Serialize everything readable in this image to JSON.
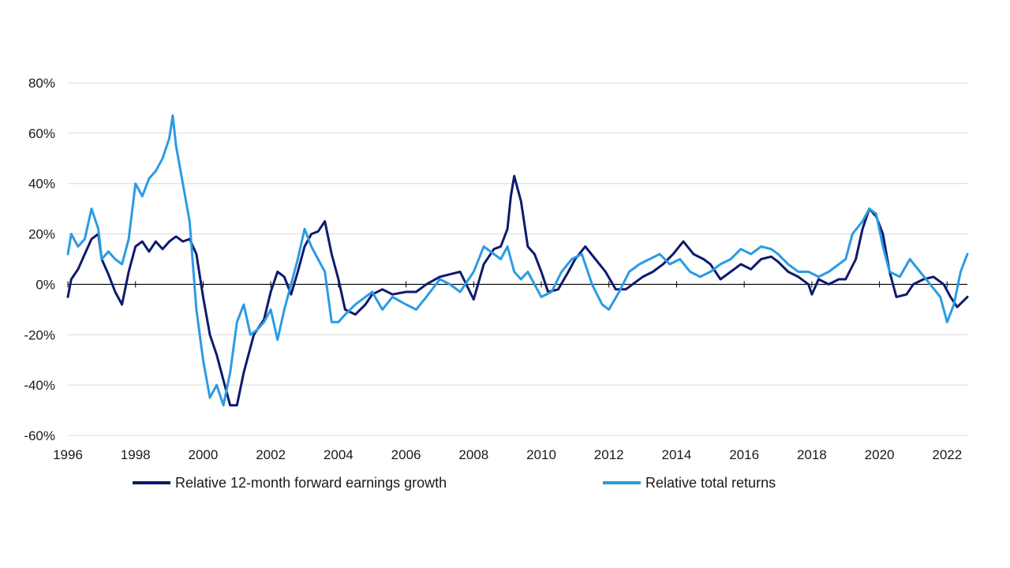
{
  "chart_data": {
    "type": "line",
    "title": "",
    "xlabel": "",
    "ylabel": "",
    "xlim": [
      1996.0,
      2022.6
    ],
    "ylim": [
      -60,
      80
    ],
    "grid": "horizontal",
    "legend_position": "bottom",
    "y_ticks": [
      80,
      60,
      40,
      20,
      0,
      -20,
      -40,
      -60
    ],
    "y_tick_labels": [
      "80%",
      "60%",
      "40%",
      "20%",
      "0%",
      "-20%",
      "-40%",
      "-60%"
    ],
    "x_ticks": [
      1996,
      1998,
      2000,
      2002,
      2004,
      2006,
      2008,
      2010,
      2012,
      2014,
      2016,
      2018,
      2020,
      2022
    ],
    "x_tick_labels": [
      "1996",
      "1998",
      "2000",
      "2002",
      "2004",
      "2006",
      "2008",
      "2010",
      "2012",
      "2014",
      "2016",
      "2018",
      "2020",
      "2022"
    ],
    "series": [
      {
        "name": "Relative 12-month forward earnings growth",
        "color": "#0d1a6e",
        "x": [
          1996.0,
          1996.1,
          1996.3,
          1996.5,
          1996.7,
          1996.9,
          1997.0,
          1997.2,
          1997.4,
          1997.6,
          1997.8,
          1998.0,
          1998.2,
          1998.4,
          1998.6,
          1998.8,
          1999.0,
          1999.2,
          1999.4,
          1999.6,
          1999.8,
          2000.0,
          2000.2,
          2000.4,
          2000.6,
          2000.8,
          2001.0,
          2001.2,
          2001.5,
          2001.8,
          2002.0,
          2002.2,
          2002.4,
          2002.6,
          2002.8,
          2003.0,
          2003.2,
          2003.4,
          2003.6,
          2003.8,
          2004.0,
          2004.2,
          2004.5,
          2004.8,
          2005.0,
          2005.3,
          2005.6,
          2006.0,
          2006.3,
          2006.6,
          2007.0,
          2007.3,
          2007.6,
          2008.0,
          2008.3,
          2008.6,
          2008.8,
          2009.0,
          2009.1,
          2009.2,
          2009.4,
          2009.6,
          2009.8,
          2010.0,
          2010.2,
          2010.5,
          2010.8,
          2011.0,
          2011.3,
          2011.6,
          2011.9,
          2012.2,
          2012.5,
          2012.8,
          2013.0,
          2013.3,
          2013.6,
          2013.9,
          2014.2,
          2014.5,
          2014.8,
          2015.0,
          2015.3,
          2015.6,
          2015.9,
          2016.2,
          2016.5,
          2016.8,
          2017.0,
          2017.3,
          2017.6,
          2017.9,
          2018.0,
          2018.2,
          2018.5,
          2018.8,
          2019.0,
          2019.3,
          2019.5,
          2019.7,
          2019.9,
          2020.1,
          2020.3,
          2020.5,
          2020.8,
          2021.0,
          2021.3,
          2021.6,
          2021.9,
          2022.1,
          2022.3,
          2022.6
        ],
        "values": [
          -5,
          2,
          6,
          12,
          18,
          20,
          10,
          4,
          -3,
          -8,
          5,
          15,
          17,
          13,
          17,
          14,
          17,
          19,
          17,
          18,
          12,
          -5,
          -20,
          -28,
          -38,
          -48,
          -48,
          -35,
          -20,
          -14,
          -3,
          5,
          3,
          -4,
          5,
          15,
          20,
          21,
          25,
          12,
          2,
          -10,
          -12,
          -8,
          -4,
          -2,
          -4,
          -3,
          -3,
          0,
          3,
          4,
          5,
          -6,
          8,
          14,
          15,
          22,
          35,
          43,
          33,
          15,
          12,
          5,
          -3,
          -2,
          5,
          10,
          15,
          10,
          5,
          -2,
          -2,
          1,
          3,
          5,
          8,
          12,
          17,
          12,
          10,
          8,
          2,
          5,
          8,
          6,
          10,
          11,
          9,
          5,
          3,
          0,
          -4,
          2,
          0,
          2,
          2,
          10,
          22,
          30,
          27,
          20,
          5,
          -5,
          -4,
          0,
          2,
          3,
          0,
          -5,
          -9,
          -5
        ]
      },
      {
        "name": "Relative total returns",
        "color": "#2b9be3",
        "x": [
          1996.0,
          1996.1,
          1996.3,
          1996.5,
          1996.7,
          1996.9,
          1997.0,
          1997.2,
          1997.4,
          1997.6,
          1997.8,
          1998.0,
          1998.2,
          1998.4,
          1998.6,
          1998.8,
          1999.0,
          1999.1,
          1999.2,
          1999.4,
          1999.6,
          1999.8,
          2000.0,
          2000.2,
          2000.4,
          2000.6,
          2000.8,
          2001.0,
          2001.2,
          2001.4,
          2001.6,
          2001.8,
          2002.0,
          2002.2,
          2002.4,
          2002.6,
          2002.8,
          2003.0,
          2003.2,
          2003.4,
          2003.6,
          2003.8,
          2004.0,
          2004.2,
          2004.5,
          2004.8,
          2005.0,
          2005.3,
          2005.6,
          2006.0,
          2006.3,
          2006.6,
          2007.0,
          2007.3,
          2007.6,
          2008.0,
          2008.3,
          2008.6,
          2008.8,
          2009.0,
          2009.2,
          2009.4,
          2009.6,
          2009.8,
          2010.0,
          2010.3,
          2010.6,
          2010.9,
          2011.2,
          2011.5,
          2011.8,
          2012.0,
          2012.3,
          2012.6,
          2012.9,
          2013.2,
          2013.5,
          2013.8,
          2014.1,
          2014.4,
          2014.7,
          2015.0,
          2015.3,
          2015.6,
          2015.9,
          2016.2,
          2016.5,
          2016.8,
          2017.0,
          2017.3,
          2017.6,
          2017.9,
          2018.2,
          2018.5,
          2018.8,
          2019.0,
          2019.2,
          2019.5,
          2019.7,
          2019.9,
          2020.1,
          2020.3,
          2020.6,
          2020.9,
          2021.2,
          2021.5,
          2021.8,
          2022.0,
          2022.2,
          2022.4,
          2022.6
        ],
        "values": [
          12,
          20,
          15,
          18,
          30,
          22,
          10,
          13,
          10,
          8,
          18,
          40,
          35,
          42,
          45,
          50,
          58,
          67,
          55,
          40,
          25,
          -10,
          -30,
          -45,
          -40,
          -48,
          -35,
          -15,
          -8,
          -20,
          -18,
          -15,
          -10,
          -22,
          -10,
          0,
          10,
          22,
          15,
          10,
          5,
          -15,
          -15,
          -12,
          -8,
          -5,
          -3,
          -10,
          -5,
          -8,
          -10,
          -5,
          2,
          0,
          -3,
          5,
          15,
          12,
          10,
          15,
          5,
          2,
          5,
          0,
          -5,
          -3,
          5,
          10,
          12,
          0,
          -8,
          -10,
          -3,
          5,
          8,
          10,
          12,
          8,
          10,
          5,
          3,
          5,
          8,
          10,
          14,
          12,
          15,
          14,
          12,
          8,
          5,
          5,
          3,
          5,
          8,
          10,
          20,
          25,
          30,
          28,
          15,
          5,
          3,
          10,
          5,
          0,
          -5,
          -15,
          -8,
          5,
          12
        ]
      }
    ]
  }
}
